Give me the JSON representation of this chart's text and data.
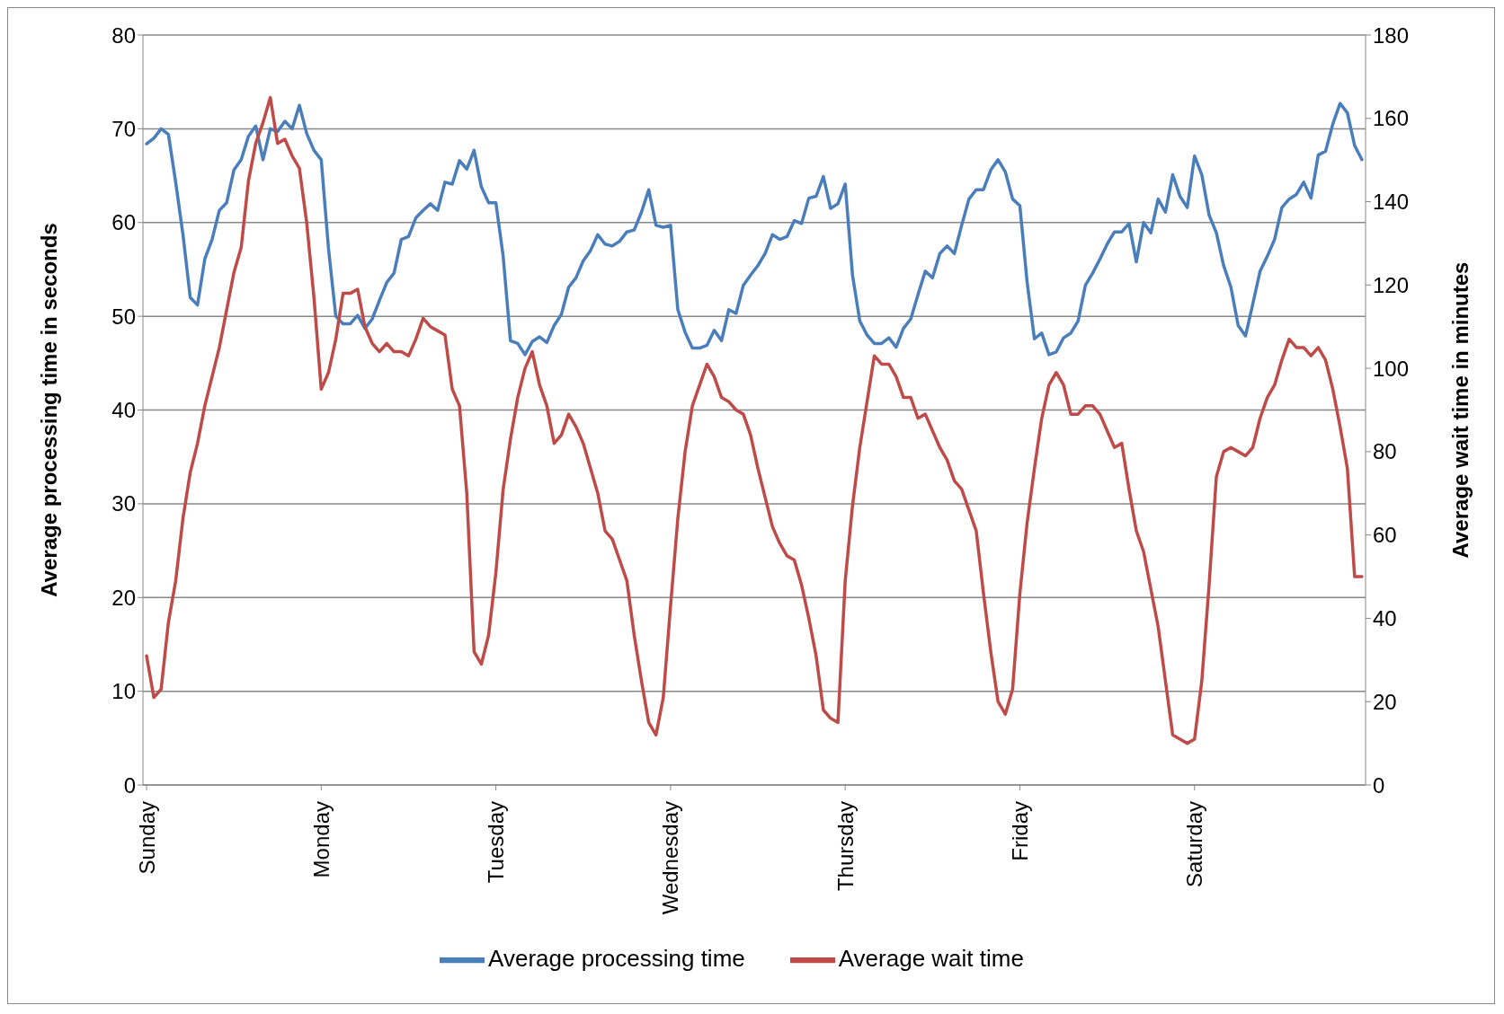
{
  "chart_data": {
    "type": "line",
    "xlabel": null,
    "ylabel": "Average processing time in seconds",
    "y2label": "Average wait time in minutes",
    "categories": [
      "Sunday",
      null,
      null,
      null,
      null,
      null,
      null,
      null,
      null,
      null,
      null,
      null,
      null,
      null,
      null,
      null,
      null,
      null,
      null,
      null,
      null,
      null,
      null,
      null,
      "Monday",
      null,
      null,
      null,
      null,
      null,
      null,
      null,
      null,
      null,
      null,
      null,
      null,
      null,
      null,
      null,
      null,
      null,
      null,
      null,
      null,
      null,
      null,
      null,
      "Tuesday",
      null,
      null,
      null,
      null,
      null,
      null,
      null,
      null,
      null,
      null,
      null,
      null,
      null,
      null,
      null,
      null,
      null,
      null,
      null,
      null,
      null,
      null,
      null,
      "Wednesday",
      null,
      null,
      null,
      null,
      null,
      null,
      null,
      null,
      null,
      null,
      null,
      null,
      null,
      null,
      null,
      null,
      null,
      null,
      null,
      null,
      null,
      null,
      null,
      "Thursday",
      null,
      null,
      null,
      null,
      null,
      null,
      null,
      null,
      null,
      null,
      null,
      null,
      null,
      null,
      null,
      null,
      null,
      null,
      null,
      null,
      null,
      null,
      null,
      "Friday",
      null,
      null,
      null,
      null,
      null,
      null,
      null,
      null,
      null,
      null,
      null,
      null,
      null,
      null,
      null,
      null,
      null,
      null,
      null,
      null,
      null,
      null,
      null,
      "Saturday",
      null,
      null,
      null,
      null,
      null,
      null,
      null,
      null,
      null,
      null,
      null,
      null,
      null,
      null,
      null,
      null,
      null,
      null,
      null,
      null,
      null,
      null,
      null
    ],
    "series": [
      {
        "name": "Average processing time",
        "color": "#4a7ebb",
        "values": [
          68.4,
          69,
          70,
          69.4,
          64.3,
          58.7,
          52,
          51.2,
          56.1,
          58.2,
          61.3,
          62.1,
          65.6,
          66.7,
          69.2,
          70.3,
          66.7,
          70,
          69.7,
          70.8,
          70,
          72.5,
          69.5,
          67.7,
          66.7,
          57.2,
          50,
          49.2,
          49.2,
          50.1,
          48.7,
          49.7,
          51.7,
          53.6,
          54.6,
          58.2,
          58.5,
          60.5,
          61.3,
          62,
          61.3,
          64.3,
          64.1,
          66.6,
          65.7,
          67.7,
          63.8,
          62.1,
          62.1,
          56.4,
          47.4,
          47.1,
          45.9,
          47.3,
          47.8,
          47.2,
          49,
          50.2,
          53.1,
          54.1,
          55.9,
          57,
          58.7,
          57.7,
          57.5,
          58,
          59,
          59.2,
          61.1,
          63.5,
          59.7,
          59.5,
          59.7,
          50.7,
          48.3,
          46.6,
          46.6,
          46.9,
          48.5,
          47.4,
          50.7,
          50.3,
          53.3,
          54.4,
          55.4,
          56.7,
          58.7,
          58.2,
          58.5,
          60.2,
          59.9,
          62.6,
          62.8,
          64.9,
          61.5,
          62,
          64.1,
          54.4,
          49.5,
          48,
          47.1,
          47.1,
          47.7,
          46.7,
          48.7,
          49.7,
          52.3,
          54.8,
          54.1,
          56.7,
          57.5,
          56.7,
          59.7,
          62.5,
          63.5,
          63.5,
          65.6,
          66.7,
          65.4,
          62.5,
          61.8,
          53.6,
          47.6,
          48.2,
          45.9,
          46.2,
          47.7,
          48.2,
          49.5,
          53.3,
          54.6,
          56.1,
          57.7,
          59,
          59,
          59.9,
          55.8,
          60,
          58.9,
          62.5,
          61.1,
          65.1,
          62.8,
          61.6,
          67.1,
          65.1,
          60.8,
          58.9,
          55.4,
          53.1,
          49,
          47.9,
          51.3,
          54.8,
          56.4,
          58.2,
          61.6,
          62.5,
          63,
          64.3,
          62.6,
          67.2,
          67.6,
          70.5,
          72.7,
          71.7,
          68.2,
          66.7
        ]
      },
      {
        "name": "Average wait time",
        "color": "#be4b48",
        "axis": "y2",
        "values": [
          31,
          21,
          23,
          39,
          49,
          64,
          75,
          82,
          91,
          98,
          105,
          114,
          123,
          129,
          145,
          154,
          159,
          165,
          154,
          155,
          151,
          148,
          135,
          117,
          95,
          99,
          107,
          118,
          118,
          119,
          110,
          106,
          104,
          106,
          104,
          104,
          103,
          107,
          112,
          110,
          109,
          108,
          95,
          91,
          70,
          32,
          29,
          36,
          51,
          71,
          83,
          93,
          100,
          104,
          96,
          91,
          82,
          84,
          89,
          86,
          82,
          76,
          70,
          61,
          59,
          54,
          49,
          36,
          25,
          15,
          12,
          21,
          43,
          64,
          80,
          91,
          96,
          101,
          98,
          93,
          92,
          90,
          89,
          84,
          76,
          69,
          62,
          58,
          55,
          54,
          48,
          40,
          31,
          18,
          16,
          15,
          49,
          67,
          81,
          92,
          103,
          101,
          101,
          98,
          93,
          93,
          88,
          89,
          85,
          81,
          78,
          73,
          71,
          66,
          61,
          46,
          32,
          20,
          17,
          23,
          46,
          63,
          76,
          88,
          96,
          99,
          96,
          89,
          89,
          91,
          91,
          89,
          85,
          81,
          82,
          71,
          61,
          56,
          47,
          38,
          25,
          12,
          11,
          10,
          11,
          25,
          48,
          74,
          80,
          81,
          80,
          79,
          81,
          88,
          93,
          96,
          102,
          107,
          105,
          105,
          103,
          105,
          102,
          95,
          86,
          76,
          50,
          50
        ]
      }
    ],
    "ylim": [
      0,
      80
    ],
    "yticks": [
      0,
      10,
      20,
      30,
      40,
      50,
      60,
      70,
      80
    ],
    "y2lim": [
      0,
      180
    ],
    "y2ticks": [
      0,
      20,
      40,
      60,
      80,
      100,
      120,
      140,
      160,
      180
    ],
    "grid": "y",
    "legend": "bottom",
    "marker": "none",
    "line_style": "solid"
  }
}
